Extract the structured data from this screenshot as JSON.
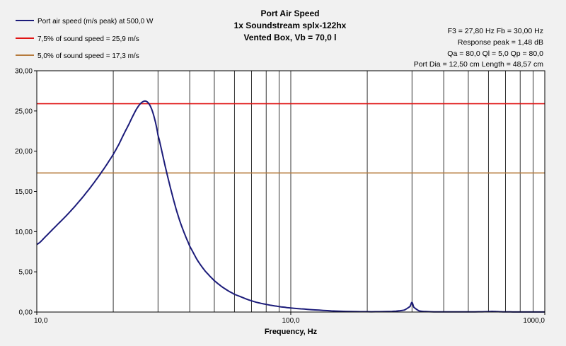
{
  "colors": {
    "background": "#f1f1f1",
    "plot_background": "#ffffff",
    "grid": "#000000",
    "air_speed": "#1c1c7a",
    "limit_7_5": "#e01414",
    "limit_5_0": "#b57a3c",
    "text": "#000000"
  },
  "header": {
    "title_line1": "Port Air Speed",
    "title_line2": "1x Soundstream splx-122hx",
    "title_line3": "Vented Box, Vb = 70,0 l"
  },
  "legend": {
    "items": [
      {
        "label": "Port air speed (m/s peak) at 500,0 W",
        "color": "#1c1c7a"
      },
      {
        "label": "7,5% of sound speed = 25,9 m/s",
        "color": "#e01414"
      },
      {
        "label": "5,0% of sound speed = 17,3 m/s",
        "color": "#b57a3c"
      }
    ]
  },
  "info": {
    "line1": "F3 = 27,80 Hz  Fb = 30,00 Hz",
    "line2": "Response peak = 1,48 dB",
    "line3": "Qa = 80,0  Ql = 5,0  Qp = 80,0",
    "line4": "Port Dia = 12,50 cm  Length = 48,57 cm"
  },
  "chart_data": {
    "type": "line",
    "title": "Port Air Speed",
    "subtitle": "1x Soundstream splx-122hx / Vented Box, Vb = 70,0 l",
    "xlabel": "Frequency, Hz",
    "ylabel": "",
    "x_scale": "log",
    "xlim": [
      10,
      1000
    ],
    "ylim": [
      0,
      30
    ],
    "x_tick_labels": [
      "10,0",
      "100,0",
      "1000,0"
    ],
    "x_ticks": [
      10,
      100,
      1000
    ],
    "y_tick_labels": [
      "0,00",
      "5,00",
      "10,00",
      "15,00",
      "20,00",
      "25,00",
      "30,00"
    ],
    "y_ticks": [
      0,
      5,
      10,
      15,
      20,
      25,
      30
    ],
    "grid": true,
    "legend_position": "top-left",
    "series": [
      {
        "name": "Port air speed (m/s peak) at 500,0 W",
        "x": [
          10,
          11,
          12,
          13,
          14,
          15,
          16,
          17,
          18,
          19,
          20,
          21,
          22,
          23,
          24,
          25,
          26,
          27,
          28,
          29,
          30,
          32,
          34,
          36,
          38,
          40,
          43,
          46,
          50,
          55,
          60,
          70,
          80,
          90,
          100,
          120,
          150,
          200,
          250,
          280,
          295,
          300,
          305,
          320,
          350,
          400,
          500,
          600,
          620,
          650,
          700,
          800,
          900,
          1000
        ],
        "y": [
          8.4,
          9.6,
          10.8,
          11.9,
          13.0,
          14.1,
          15.2,
          16.3,
          17.4,
          18.5,
          19.6,
          20.8,
          22.1,
          23.3,
          24.5,
          25.5,
          26.1,
          26.2,
          25.6,
          24.2,
          22.0,
          18.2,
          14.8,
          12.0,
          9.9,
          8.2,
          6.4,
          5.1,
          3.9,
          2.9,
          2.2,
          1.4,
          0.95,
          0.68,
          0.5,
          0.3,
          0.12,
          0.04,
          0.08,
          0.25,
          0.7,
          1.2,
          0.6,
          0.15,
          0.04,
          0.02,
          0.02,
          0.05,
          0.08,
          0.05,
          0.02,
          0.01,
          0.01,
          0.01
        ]
      },
      {
        "name": "7,5% of sound speed = 25,9 m/s",
        "x": [
          10,
          1000
        ],
        "y": [
          25.9,
          25.9
        ]
      },
      {
        "name": "5,0% of sound speed = 17,3 m/s",
        "x": [
          10,
          1000
        ],
        "y": [
          17.3,
          17.3
        ]
      }
    ]
  }
}
